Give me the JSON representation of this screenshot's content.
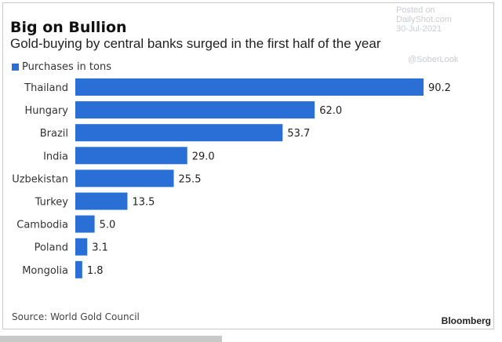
{
  "chart_data": {
    "type": "bar",
    "orientation": "horizontal",
    "title": "Big on Bullion",
    "subtitle": "Gold-buying by central banks surged in the first half of the year",
    "legend": [
      "Purchases in tons"
    ],
    "categories": [
      "Thailand",
      "Hungary",
      "Brazil",
      "India",
      "Uzbekistan",
      "Turkey",
      "Cambodia",
      "Poland",
      "Mongolia"
    ],
    "values": [
      90.2,
      62.0,
      53.7,
      29.0,
      25.5,
      13.5,
      5.0,
      3.1,
      1.8
    ],
    "value_labels": [
      "90.2",
      "62.0",
      "53.7",
      "29.0",
      "25.5",
      "13.5",
      "5.0",
      "3.1",
      "1.8"
    ],
    "xlim": [
      0,
      90.2
    ],
    "grid": false,
    "color": "#2a6fd6",
    "source": "Source: World Gold Council",
    "brand": "Bloomberg"
  },
  "watermark": {
    "line1": "Posted on",
    "line2": "DailyShot.com",
    "line3": "30-Jul-2021",
    "line4": "@SoberLook"
  }
}
